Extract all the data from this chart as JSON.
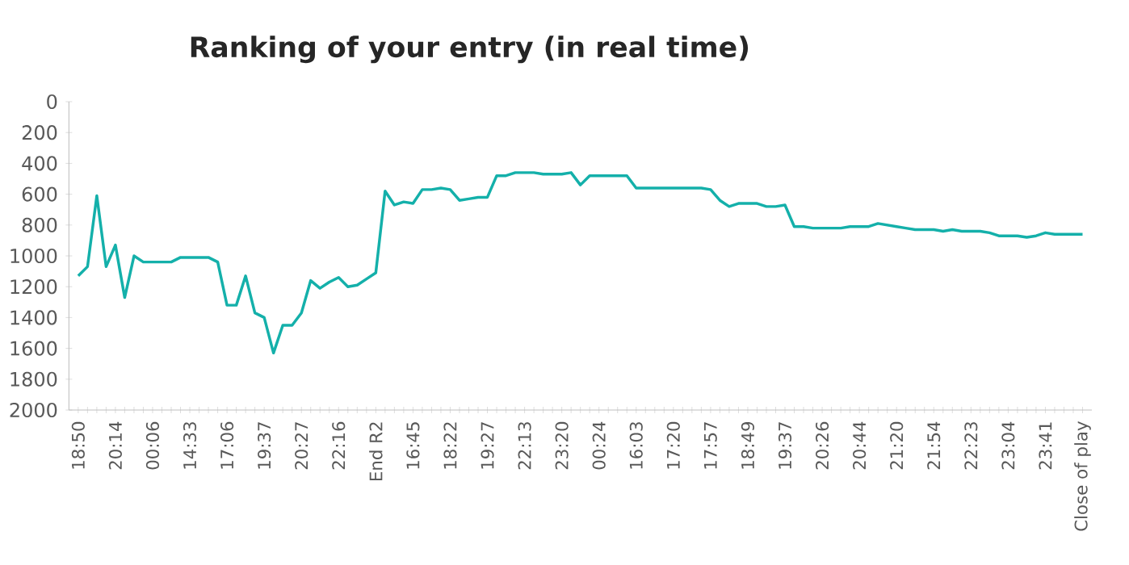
{
  "chart_data": {
    "type": "line",
    "title": "Ranking of your entry (in real time)",
    "categories": [
      "18:50",
      null,
      null,
      null,
      "20:14",
      null,
      null,
      null,
      "00:06",
      null,
      null,
      null,
      "14:33",
      null,
      null,
      null,
      "17:06",
      null,
      null,
      null,
      "19:37",
      null,
      null,
      null,
      "20:27",
      null,
      null,
      null,
      "22:16",
      null,
      null,
      null,
      "End R2",
      null,
      null,
      null,
      "16:45",
      null,
      null,
      null,
      "18:22",
      null,
      null,
      null,
      "19:27",
      null,
      null,
      null,
      "22:13",
      null,
      null,
      null,
      "23:20",
      null,
      null,
      null,
      "00:24",
      null,
      null,
      null,
      "16:03",
      null,
      null,
      null,
      "17:20",
      null,
      null,
      null,
      "17:57",
      null,
      null,
      null,
      "18:49",
      null,
      null,
      null,
      "19:37",
      null,
      null,
      null,
      "20:26",
      null,
      null,
      null,
      "20:44",
      null,
      null,
      null,
      "21:20",
      null,
      null,
      null,
      "21:54",
      null,
      null,
      null,
      "22:23",
      null,
      null,
      null,
      "23:04",
      null,
      null,
      null,
      "23:41",
      null,
      null,
      null,
      "Close of play"
    ],
    "series": [
      {
        "color": "#14b0aa",
        "values": [
          1130,
          1070,
          610,
          1070,
          930,
          1270,
          1000,
          1040,
          1040,
          1040,
          1040,
          1010,
          1010,
          1010,
          1010,
          1040,
          1320,
          1320,
          1130,
          1370,
          1400,
          1630,
          1450,
          1450,
          1370,
          1160,
          1210,
          1170,
          1140,
          1200,
          1190,
          1150,
          1110,
          580,
          670,
          650,
          660,
          570,
          570,
          560,
          570,
          640,
          630,
          620,
          620,
          480,
          480,
          460,
          460,
          460,
          470,
          470,
          470,
          460,
          540,
          480,
          480,
          480,
          480,
          480,
          560,
          560,
          560,
          560,
          560,
          560,
          560,
          560,
          570,
          640,
          680,
          660,
          660,
          660,
          680,
          680,
          670,
          810,
          810,
          820,
          820,
          820,
          820,
          810,
          810,
          810,
          790,
          800,
          810,
          820,
          830,
          830,
          830,
          840,
          830,
          840,
          840,
          840,
          850,
          870,
          870,
          870,
          880,
          870,
          850,
          860,
          860,
          860,
          860
        ]
      }
    ],
    "ylim": [
      2000,
      0
    ],
    "yticks": [
      0,
      200,
      400,
      600,
      800,
      1000,
      1200,
      1400,
      1600,
      1800,
      2000
    ],
    "grid": false,
    "marker": "none",
    "line_style": "solid"
  }
}
